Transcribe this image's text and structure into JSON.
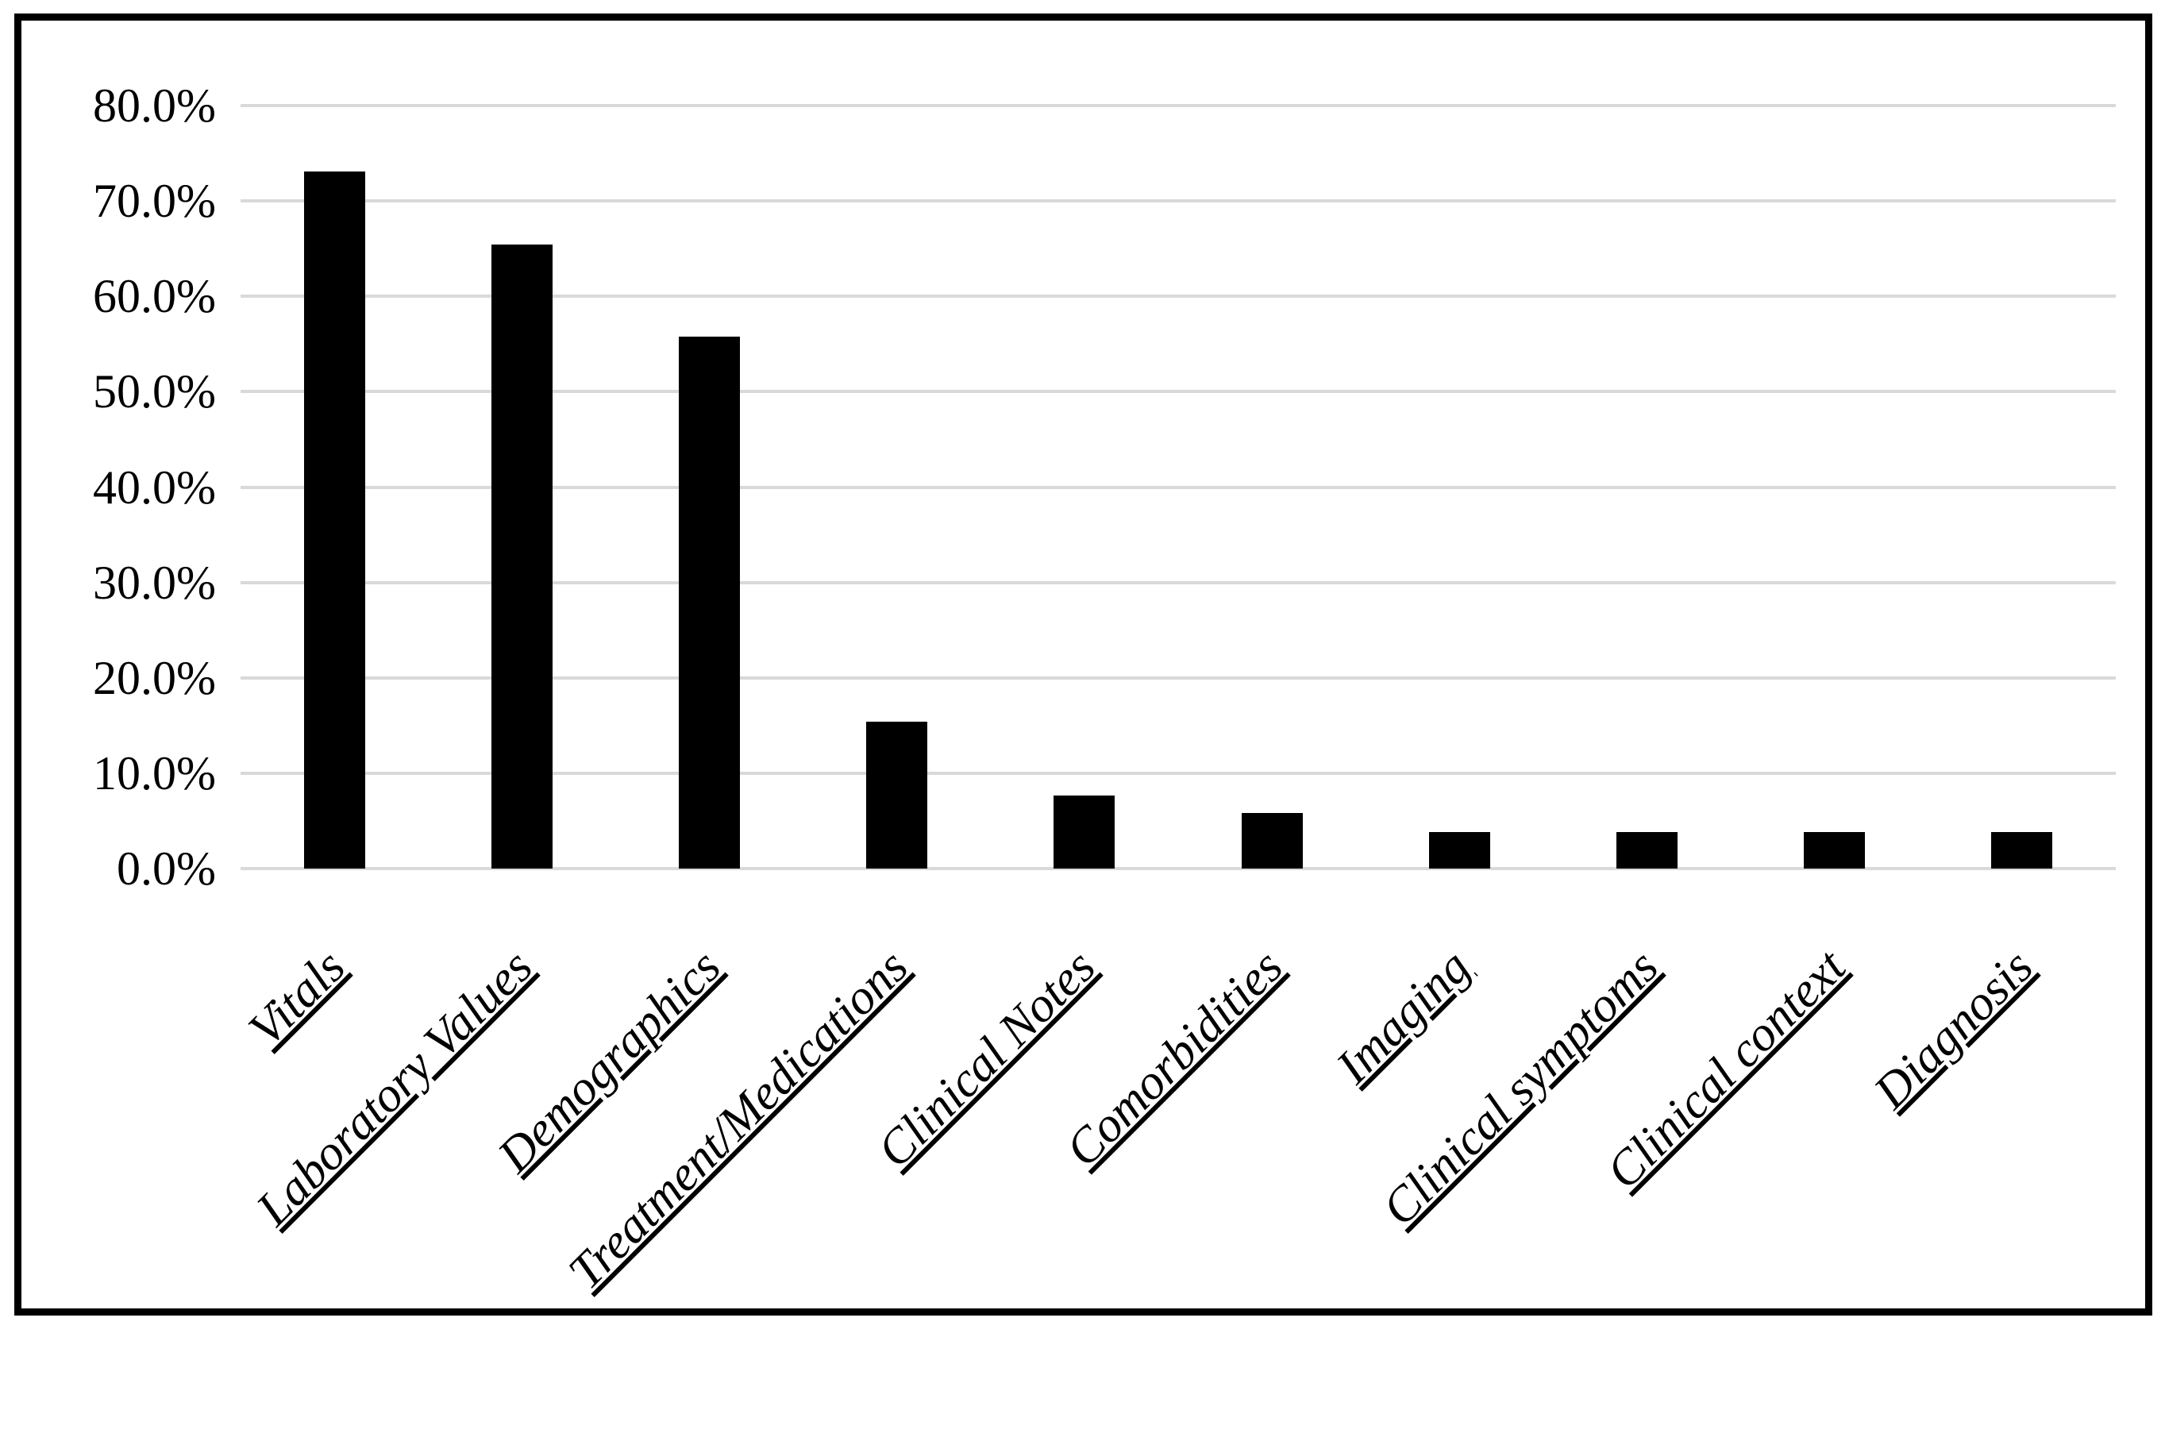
{
  "chart_data": {
    "type": "bar",
    "title": "",
    "xlabel": "",
    "ylabel": "",
    "categories": [
      "Vitals",
      "Laboratory Values",
      "Demographics",
      "Treatment/Medications",
      "Clinical Notes",
      "Comorbidities",
      "Imaging",
      "Clinical symptoms",
      "Clinical context",
      "Diagnosis"
    ],
    "values": [
      73.1,
      65.4,
      55.8,
      15.4,
      7.7,
      5.8,
      3.8,
      3.8,
      3.8,
      3.8
    ],
    "value_unit": "%",
    "ylim": [
      0,
      80
    ],
    "ytick_step": 10,
    "yticks": [
      "80.0%",
      "70.0%",
      "60.0%",
      "50.0%",
      "40.0%",
      "30.0%",
      "20.0%",
      "10.0%",
      "0.0%"
    ],
    "grid": true,
    "legend_position": "none",
    "x_label_style": "italic, underlined, rotated 45 degrees",
    "colors": {
      "bar": "#000000",
      "gridline": "#d9d9d9",
      "frame_border": "#000000",
      "background": "#ffffff",
      "text": "#000000"
    }
  }
}
